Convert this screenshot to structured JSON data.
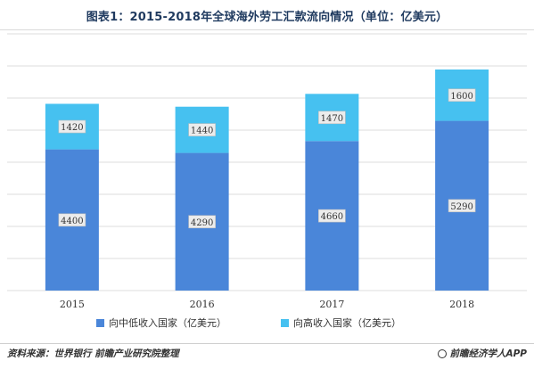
{
  "chart_data": {
    "type": "bar",
    "stacked": true,
    "title": "图表1：2015-2018年全球海外劳工汇款流向情况（单位：亿美元）",
    "categories": [
      "2015",
      "2016",
      "2017",
      "2018"
    ],
    "series": [
      {
        "name": "向中低收入国家（亿美元）",
        "values": [
          4400,
          4290,
          4660,
          5290
        ],
        "color": "#4a86d9"
      },
      {
        "name": "向高收入国家（亿美元）",
        "values": [
          1420,
          1440,
          1470,
          1600
        ],
        "color": "#46c1f0"
      }
    ],
    "ylim": [
      0,
      8000
    ],
    "grid": true,
    "legend": "bottom",
    "data_labels": true
  },
  "footer": {
    "source": "资料来源：世界银行 前瞻产业研究院整理",
    "brand": "前瞻经济学人APP"
  },
  "colors": {
    "gridline": "#dcdcdc",
    "label_box": "#ececec"
  }
}
